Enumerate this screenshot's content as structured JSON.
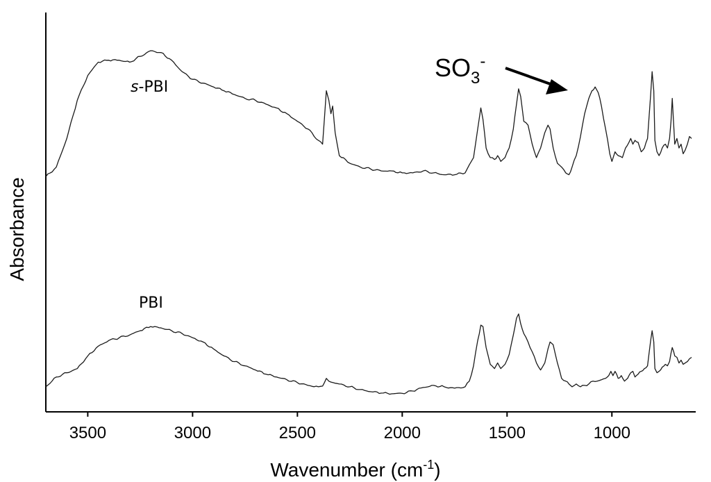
{
  "chart_data": {
    "type": "line",
    "xlabel": "Wavenumber (cm",
    "xlabel_sup": "-1",
    "xlabel_end": ")",
    "ylabel": "Absorbance",
    "xlim": [
      3700,
      620
    ],
    "x_reversed": true,
    "y_ticks_shown": false,
    "grid": false,
    "x_ticks": [
      3500,
      3000,
      2500,
      2000,
      1500,
      1000
    ],
    "x_tick_labels": [
      "3500",
      "3000",
      "2500",
      "2000",
      "1500",
      "1000"
    ],
    "ylim": [
      0,
      1.15
    ],
    "series": [
      {
        "name": "s-PBI",
        "label_prefix": "s",
        "label_rest": "-PBI",
        "x": [
          3700,
          3650,
          3600,
          3550,
          3500,
          3450,
          3400,
          3350,
          3300,
          3250,
          3200,
          3150,
          3100,
          3050,
          3000,
          2950,
          2900,
          2850,
          2800,
          2750,
          2700,
          2650,
          2600,
          2550,
          2500,
          2450,
          2400,
          2380,
          2362,
          2350,
          2340,
          2332,
          2320,
          2300,
          2250,
          2200,
          2150,
          2100,
          2050,
          2000,
          1950,
          1900,
          1850,
          1800,
          1750,
          1700,
          1660,
          1640,
          1625,
          1615,
          1600,
          1580,
          1560,
          1545,
          1530,
          1510,
          1490,
          1470,
          1455,
          1445,
          1435,
          1420,
          1400,
          1380,
          1360,
          1340,
          1320,
          1305,
          1295,
          1280,
          1260,
          1240,
          1220,
          1205,
          1190,
          1170,
          1150,
          1130,
          1110,
          1095,
          1080,
          1065,
          1050,
          1030,
          1010,
          1000,
          985,
          970,
          950,
          935,
          910,
          900,
          890,
          875,
          860,
          845,
          830,
          815,
          808,
          800,
          795,
          785,
          775,
          760,
          745,
          735,
          725,
          718,
          712,
          705,
          700,
          690,
          680,
          670,
          660,
          650,
          640,
          630,
          620
        ],
        "y": [
          0.45,
          0.5,
          0.65,
          0.85,
          0.98,
          1.05,
          1.06,
          1.06,
          1.05,
          1.08,
          1.11,
          1.1,
          1.06,
          1.0,
          0.96,
          0.94,
          0.92,
          0.9,
          0.88,
          0.86,
          0.85,
          0.83,
          0.81,
          0.78,
          0.74,
          0.7,
          0.64,
          0.62,
          0.9,
          0.85,
          0.78,
          0.82,
          0.68,
          0.56,
          0.52,
          0.5,
          0.49,
          0.48,
          0.48,
          0.47,
          0.47,
          0.48,
          0.47,
          0.46,
          0.46,
          0.47,
          0.55,
          0.7,
          0.81,
          0.75,
          0.6,
          0.55,
          0.54,
          0.56,
          0.53,
          0.55,
          0.6,
          0.7,
          0.83,
          0.91,
          0.87,
          0.74,
          0.72,
          0.62,
          0.55,
          0.6,
          0.68,
          0.72,
          0.7,
          0.6,
          0.52,
          0.5,
          0.47,
          0.46,
          0.5,
          0.56,
          0.66,
          0.78,
          0.86,
          0.9,
          0.92,
          0.89,
          0.82,
          0.7,
          0.57,
          0.53,
          0.58,
          0.56,
          0.55,
          0.6,
          0.65,
          0.62,
          0.64,
          0.63,
          0.58,
          0.6,
          0.65,
          0.88,
          1.0,
          0.9,
          0.64,
          0.58,
          0.56,
          0.6,
          0.62,
          0.6,
          0.65,
          0.74,
          0.86,
          0.72,
          0.62,
          0.65,
          0.6,
          0.62,
          0.57,
          0.59,
          0.62,
          0.66,
          0.65
        ]
      },
      {
        "name": "PBI",
        "label_prefix": "",
        "label_rest": "PBI",
        "x": [
          3700,
          3650,
          3600,
          3550,
          3500,
          3450,
          3400,
          3350,
          3300,
          3250,
          3200,
          3150,
          3100,
          3050,
          3000,
          2950,
          2900,
          2850,
          2800,
          2750,
          2700,
          2650,
          2600,
          2550,
          2500,
          2450,
          2400,
          2380,
          2362,
          2350,
          2330,
          2300,
          2250,
          2200,
          2150,
          2100,
          2050,
          2000,
          1950,
          1900,
          1850,
          1800,
          1750,
          1700,
          1680,
          1660,
          1640,
          1625,
          1615,
          1600,
          1580,
          1560,
          1545,
          1530,
          1510,
          1490,
          1470,
          1455,
          1445,
          1435,
          1420,
          1400,
          1380,
          1360,
          1340,
          1320,
          1305,
          1295,
          1280,
          1260,
          1240,
          1220,
          1205,
          1190,
          1170,
          1150,
          1130,
          1110,
          1090,
          1070,
          1050,
          1030,
          1015,
          1005,
          995,
          985,
          970,
          955,
          940,
          925,
          910,
          900,
          890,
          875,
          860,
          845,
          830,
          815,
          808,
          800,
          795,
          785,
          775,
          760,
          745,
          735,
          725,
          718,
          712,
          705,
          700,
          690,
          680,
          670,
          660,
          650,
          640,
          630,
          620
        ],
        "y": [
          0.05,
          0.12,
          0.15,
          0.18,
          0.27,
          0.34,
          0.38,
          0.4,
          0.42,
          0.45,
          0.48,
          0.47,
          0.45,
          0.43,
          0.4,
          0.37,
          0.32,
          0.27,
          0.23,
          0.2,
          0.17,
          0.14,
          0.12,
          0.1,
          0.08,
          0.06,
          0.05,
          0.055,
          0.11,
          0.09,
          0.08,
          0.07,
          0.05,
          0.03,
          0.015,
          0.005,
          0.0,
          0.003,
          0.02,
          0.045,
          0.06,
          0.05,
          0.04,
          0.05,
          0.09,
          0.2,
          0.38,
          0.49,
          0.48,
          0.33,
          0.21,
          0.18,
          0.22,
          0.18,
          0.21,
          0.28,
          0.42,
          0.54,
          0.57,
          0.5,
          0.43,
          0.37,
          0.3,
          0.22,
          0.17,
          0.22,
          0.32,
          0.37,
          0.35,
          0.22,
          0.11,
          0.09,
          0.07,
          0.05,
          0.07,
          0.05,
          0.06,
          0.07,
          0.09,
          0.09,
          0.1,
          0.11,
          0.13,
          0.16,
          0.13,
          0.16,
          0.11,
          0.13,
          0.09,
          0.11,
          0.15,
          0.16,
          0.12,
          0.14,
          0.16,
          0.18,
          0.2,
          0.38,
          0.45,
          0.37,
          0.18,
          0.15,
          0.16,
          0.19,
          0.21,
          0.2,
          0.23,
          0.29,
          0.33,
          0.3,
          0.27,
          0.26,
          0.22,
          0.24,
          0.21,
          0.22,
          0.23,
          0.25,
          0.26
        ]
      }
    ],
    "annotations": [
      {
        "text": "SO",
        "sub": "3",
        "sup": "-",
        "arrow_to_x": 1140
      }
    ]
  }
}
